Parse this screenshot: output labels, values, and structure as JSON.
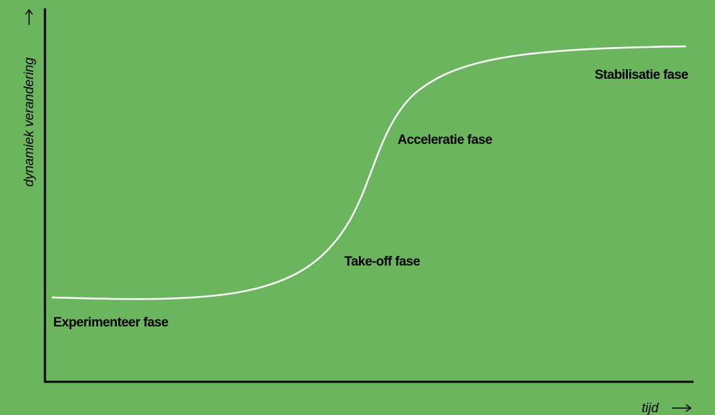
{
  "diagram": {
    "y_axis_label": "dynamiek verandering",
    "x_axis_label": "tijd",
    "phases": [
      {
        "label": "Experimenteer fase"
      },
      {
        "label": "Take-off fase"
      },
      {
        "label": "Acceleratie fase"
      },
      {
        "label": "Stabilisatie fase"
      }
    ]
  }
}
